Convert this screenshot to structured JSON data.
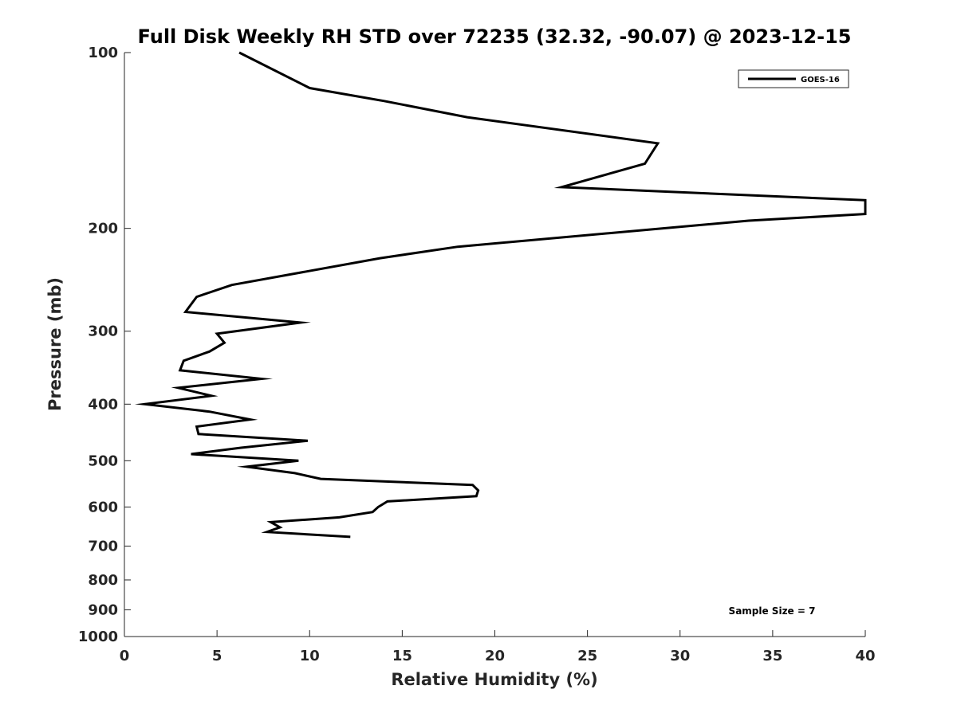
{
  "chart_data": {
    "type": "line",
    "title": "Full Disk Weekly RH STD over 72235 (32.32, -90.07) @ 2023-12-15",
    "xlabel": "Relative Humidity (%)",
    "ylabel": "Pressure (mb)",
    "xlim": [
      0,
      40
    ],
    "ylim": [
      100,
      1000
    ],
    "y_scale": "log",
    "y_reversed": true,
    "x_ticks": [
      "0",
      "5",
      "10",
      "15",
      "20",
      "25",
      "30",
      "35",
      "40"
    ],
    "y_ticks": [
      "100",
      "200",
      "300",
      "400",
      "500",
      "600",
      "700",
      "800",
      "900",
      "1000"
    ],
    "grid": false,
    "legend": {
      "position": "top-right",
      "entries": [
        "GOES-16"
      ]
    },
    "annotation": "Sample Size = 7",
    "series": [
      {
        "name": "GOES-16",
        "color": "#000000",
        "points": [
          [
            6.2,
            100
          ],
          [
            10.0,
            115
          ],
          [
            14.0,
            121
          ],
          [
            18.5,
            129
          ],
          [
            28.8,
            143
          ],
          [
            28.1,
            155
          ],
          [
            23.6,
            170
          ],
          [
            40.0,
            179
          ],
          [
            40.0,
            189
          ],
          [
            33.7,
            194
          ],
          [
            18.0,
            215
          ],
          [
            13.8,
            225
          ],
          [
            5.8,
            250
          ],
          [
            3.9,
            262
          ],
          [
            3.3,
            278
          ],
          [
            9.5,
            290
          ],
          [
            5.0,
            303
          ],
          [
            5.4,
            314
          ],
          [
            4.6,
            325
          ],
          [
            3.2,
            337
          ],
          [
            3.0,
            350
          ],
          [
            7.4,
            362
          ],
          [
            2.9,
            375
          ],
          [
            4.7,
            387
          ],
          [
            1.1,
            400
          ],
          [
            4.6,
            412
          ],
          [
            6.8,
            425
          ],
          [
            3.9,
            437
          ],
          [
            4.0,
            450
          ],
          [
            9.9,
            462
          ],
          [
            6.3,
            475
          ],
          [
            3.6,
            487
          ],
          [
            9.4,
            500
          ],
          [
            6.6,
            512
          ],
          [
            9.2,
            525
          ],
          [
            10.6,
            537
          ],
          [
            18.8,
            550
          ],
          [
            19.1,
            562
          ],
          [
            19.0,
            575
          ],
          [
            14.2,
            587
          ],
          [
            13.7,
            600
          ],
          [
            13.4,
            612
          ],
          [
            11.6,
            625
          ],
          [
            7.9,
            637
          ],
          [
            8.4,
            650
          ],
          [
            7.7,
            662
          ],
          [
            12.2,
            675
          ]
        ]
      }
    ]
  }
}
